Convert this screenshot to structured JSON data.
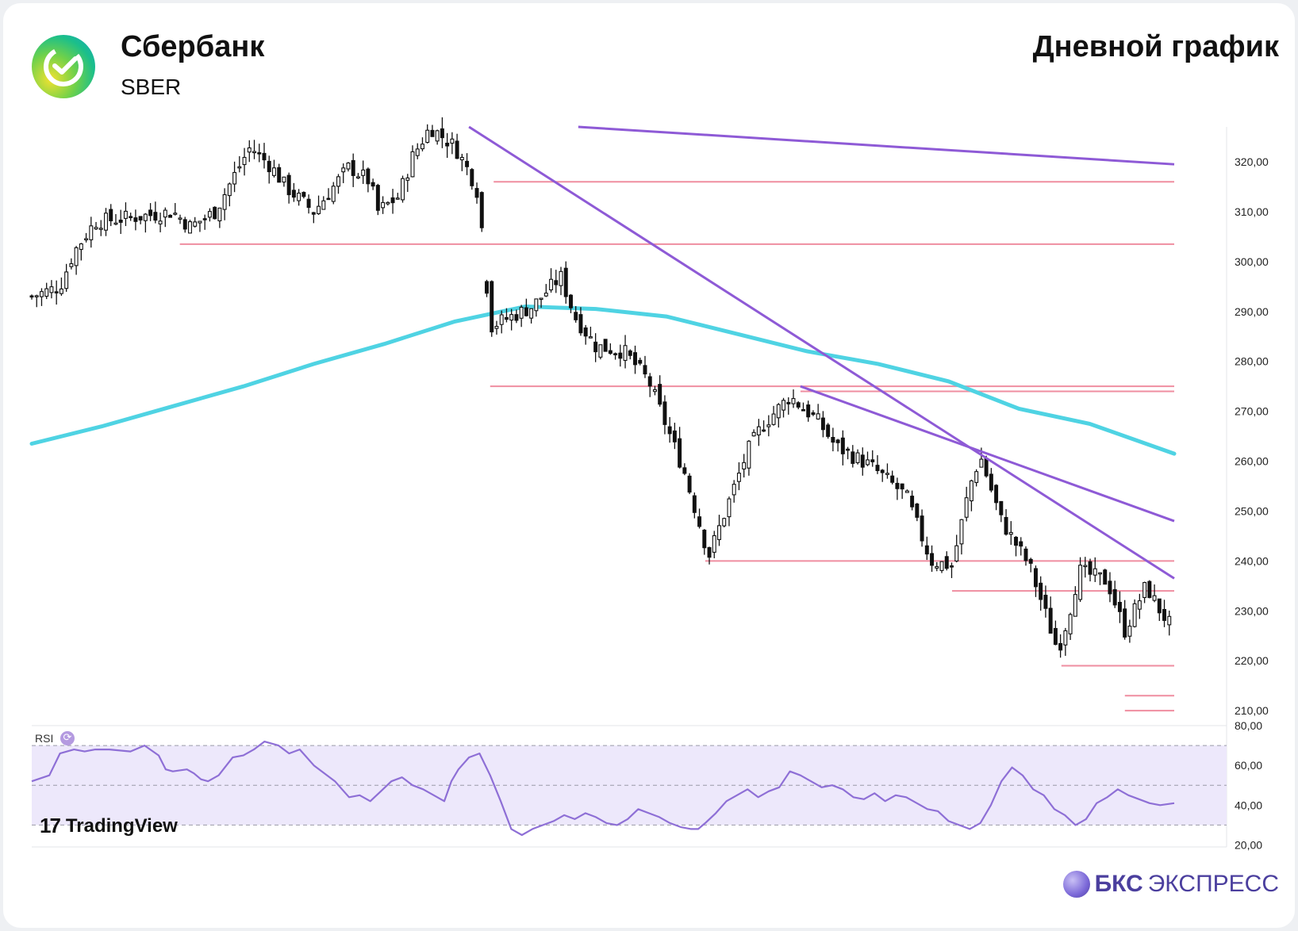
{
  "header": {
    "company": "Сбербанк",
    "ticker": "SBER",
    "title": "Дневной график"
  },
  "indicator_label": "RSI",
  "watermark": "TradingView",
  "brand": {
    "bold": "БКС",
    "regular": "ЭКСПРЕСС"
  },
  "colors": {
    "up_candle": "#ffffff",
    "down_candle": "#111111",
    "ma": "#4fd3e3",
    "trendline": "#8e5ad6",
    "support": "#ef8ea0",
    "rsi": "#8e6fd6",
    "rsi_band": "#ede8fb"
  },
  "chart_data": [
    {
      "type": "candlestick",
      "y_ticks": [
        "320,00",
        "310,00",
        "300,00",
        "290,00",
        "280,00",
        "270,00",
        "260,00",
        "250,00",
        "240,00",
        "230,00",
        "220,00",
        "210,00"
      ],
      "ylim": [
        207,
        327
      ],
      "n_bars": 231,
      "close_path": [
        [
          0,
          293
        ],
        [
          8,
          295
        ],
        [
          12,
          302
        ],
        [
          18,
          308
        ],
        [
          30,
          309
        ],
        [
          40,
          310
        ],
        [
          45,
          307
        ],
        [
          52,
          310
        ],
        [
          58,
          318
        ],
        [
          62,
          323
        ],
        [
          68,
          319
        ],
        [
          72,
          315
        ],
        [
          80,
          310
        ],
        [
          90,
          319
        ],
        [
          96,
          316
        ],
        [
          98,
          310
        ],
        [
          104,
          313
        ],
        [
          108,
          321
        ],
        [
          113,
          327
        ],
        [
          120,
          323
        ],
        [
          124,
          318
        ],
        [
          126,
          315
        ],
        [
          127,
          312
        ],
        [
          130,
          287
        ],
        [
          142,
          291
        ],
        [
          150,
          297
        ],
        [
          154,
          289
        ],
        [
          160,
          283
        ],
        [
          168,
          282
        ],
        [
          175,
          276
        ],
        [
          185,
          258
        ],
        [
          192,
          241
        ],
        [
          203,
          262
        ],
        [
          207,
          267
        ],
        [
          215,
          273
        ],
        [
          223,
          268
        ],
        [
          228,
          263
        ],
        [
          238,
          259
        ],
        [
          248,
          253
        ],
        [
          255,
          240
        ],
        [
          261,
          239
        ],
        [
          266,
          255
        ],
        [
          269,
          261
        ],
        [
          275,
          248
        ],
        [
          283,
          239
        ],
        [
          291,
          222
        ],
        [
          294,
          229
        ],
        [
          297,
          238
        ],
        [
          305,
          236
        ],
        [
          310,
          226
        ],
        [
          316,
          235
        ],
        [
          320,
          230
        ],
        [
          324,
          226
        ]
      ],
      "close_path_x_note": "",
      "series": [
        {
          "name": "",
          "type": "line",
          "x": [
            0,
            20,
            40,
            60,
            80,
            100,
            120,
            140,
            160,
            180,
            200,
            220,
            240,
            260,
            280,
            300,
            324
          ],
          "values": [
            263.5,
            267,
            271,
            275,
            279.5,
            283.5,
            288,
            291,
            290.5,
            289,
            285.5,
            282,
            279.5,
            276,
            270.5,
            267.5,
            261.5
          ]
        }
      ],
      "x_index_max": 324,
      "support_levels": [
        {
          "y": 316,
          "x_from": 131,
          "x_to": 324
        },
        {
          "y": 303.5,
          "x_from": 42,
          "x_to": 324
        },
        {
          "y": 275,
          "x_from": 130,
          "x_to": 324
        },
        {
          "y": 274,
          "x_from": 218,
          "x_to": 324
        },
        {
          "y": 240,
          "x_from": 191,
          "x_to": 324
        },
        {
          "y": 234,
          "x_from": 261,
          "x_to": 324
        },
        {
          "y": 219,
          "x_from": 292,
          "x_to": 324
        },
        {
          "y": 213,
          "x_from": 310,
          "x_to": 324
        },
        {
          "y": 210,
          "x_from": 310,
          "x_to": 324
        }
      ],
      "trendlines": [
        {
          "x1": 155,
          "y1": 328,
          "x2": 324,
          "y2": 319.5
        },
        {
          "x1": 124,
          "y1": 328,
          "x2": 324,
          "y2": 236.5
        },
        {
          "x1": 218,
          "y1": 275,
          "x2": 324,
          "y2": 248
        }
      ]
    },
    {
      "type": "line",
      "title": "RSI",
      "y_ticks": [
        "80,00",
        "60,00",
        "40,00",
        "20,00"
      ],
      "ylim": [
        19,
        80
      ],
      "bands": [
        30,
        50,
        70
      ],
      "x": [
        0,
        5,
        8,
        12,
        15,
        18,
        22,
        28,
        32,
        36,
        38,
        40,
        44,
        46,
        48,
        50,
        53,
        57,
        60,
        63,
        66,
        70,
        73,
        76,
        80,
        83,
        86,
        88,
        90,
        93,
        96,
        99,
        102,
        105,
        108,
        111,
        114,
        117,
        119,
        121,
        124,
        127,
        130,
        133,
        136,
        139,
        142,
        145,
        148,
        151,
        154,
        157,
        160,
        163,
        166,
        169,
        172,
        175,
        178,
        181,
        184,
        187,
        189,
        191,
        194,
        197,
        200,
        203,
        206,
        209,
        212,
        215,
        218,
        221,
        224,
        227,
        230,
        233,
        236,
        239,
        242,
        245,
        248,
        251,
        254,
        257,
        260,
        263,
        266,
        269,
        272,
        275,
        278,
        281,
        284,
        287,
        290,
        293,
        296,
        299,
        302,
        305,
        308,
        311,
        314,
        317,
        320,
        324
      ],
      "values": [
        52,
        55,
        66,
        68,
        67,
        68,
        68,
        67,
        70,
        65,
        58,
        57,
        58,
        56,
        53,
        52,
        55,
        64,
        65,
        68,
        72,
        70,
        66,
        68,
        60,
        56,
        52,
        48,
        44,
        45,
        42,
        47,
        52,
        54,
        50,
        48,
        45,
        42,
        52,
        58,
        64,
        66,
        55,
        42,
        28,
        25,
        28,
        30,
        32,
        35,
        33,
        36,
        34,
        31,
        30,
        33,
        38,
        36,
        34,
        31,
        29,
        28,
        28,
        31,
        36,
        42,
        45,
        48,
        44,
        47,
        49,
        57,
        55,
        52,
        49,
        50,
        48,
        44,
        43,
        46,
        42,
        45,
        44,
        41,
        38,
        37,
        32,
        30,
        28,
        31,
        40,
        52,
        59,
        55,
        48,
        45,
        38,
        35,
        30,
        33,
        41,
        44,
        48,
        45,
        43,
        41,
        40,
        41
      ]
    }
  ]
}
